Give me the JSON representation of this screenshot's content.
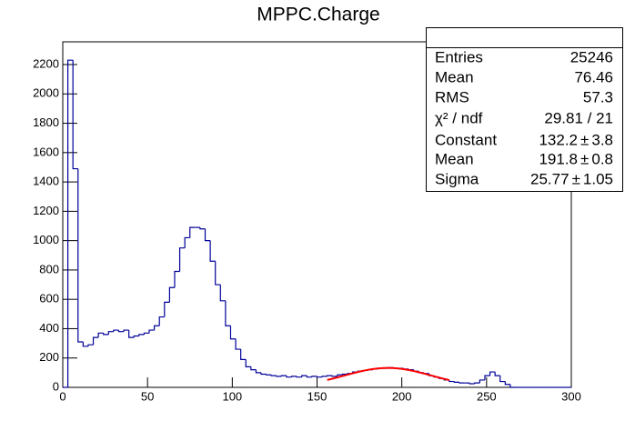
{
  "chart_data": {
    "type": "histogram",
    "title": "MPPC.Charge",
    "color": "#000099",
    "bins": [
      0,
      3,
      6,
      9,
      12,
      15,
      18,
      21,
      24,
      27,
      30,
      33,
      36,
      39,
      42,
      45,
      48,
      51,
      54,
      57,
      60,
      63,
      66,
      69,
      72,
      75,
      78,
      81,
      84,
      87,
      90,
      93,
      96,
      99,
      102,
      105,
      108,
      111,
      114,
      117,
      120,
      123,
      126,
      129,
      132,
      135,
      138,
      141,
      144,
      147,
      150,
      153,
      156,
      159,
      162,
      165,
      168,
      171,
      174,
      177,
      180,
      183,
      186,
      189,
      192,
      195,
      198,
      201,
      204,
      207,
      210,
      213,
      216,
      219,
      222,
      225,
      228,
      231,
      234,
      237,
      240,
      243,
      246,
      249,
      252,
      255,
      258,
      261,
      264,
      267,
      270,
      273,
      276,
      279,
      282,
      285,
      288,
      291,
      294,
      297,
      300
    ],
    "values": [
      0,
      2230,
      1490,
      310,
      280,
      290,
      340,
      370,
      360,
      380,
      390,
      380,
      390,
      340,
      350,
      360,
      370,
      390,
      420,
      480,
      580,
      680,
      790,
      950,
      1020,
      1090,
      1090,
      1080,
      1000,
      860,
      700,
      590,
      420,
      330,
      260,
      190,
      140,
      120,
      100,
      90,
      85,
      80,
      75,
      80,
      70,
      75,
      70,
      80,
      70,
      75,
      70,
      75,
      80,
      75,
      85,
      90,
      95,
      105,
      110,
      115,
      120,
      125,
      130,
      130,
      135,
      130,
      130,
      125,
      120,
      110,
      100,
      95,
      80,
      70,
      60,
      50,
      40,
      35,
      30,
      30,
      25,
      30,
      50,
      80,
      105,
      80,
      40,
      20,
      0,
      0,
      0,
      0,
      0,
      0,
      0,
      0,
      0,
      0,
      0,
      0
    ],
    "xlim": [
      0,
      300
    ],
    "ylim": [
      0,
      2355
    ],
    "xticks": [
      0,
      50,
      100,
      150,
      200,
      250,
      300
    ],
    "yticks": [
      0,
      200,
      400,
      600,
      800,
      1000,
      1200,
      1400,
      1600,
      1800,
      2000,
      2200
    ],
    "stats": {
      "rows": [
        {
          "label": "Entries",
          "value": 25246
        },
        {
          "label": "Mean",
          "value": 76.46
        },
        {
          "label": "RMS",
          "value": 57.3
        },
        {
          "label": "χ² / ndf",
          "value": "29.81 / 21"
        },
        {
          "label": "Constant",
          "value": 132.2,
          "error": 3.8
        },
        {
          "label": "Mean",
          "value": 191.8,
          "error": 0.8
        },
        {
          "label": "Sigma",
          "value": 25.77,
          "error": 1.05
        }
      ],
      "pm": "±"
    },
    "fit_range": [
      156,
      228
    ],
    "fit_color": "#ff0000"
  }
}
